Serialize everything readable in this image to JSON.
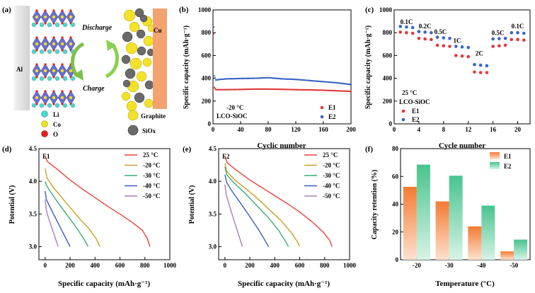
{
  "colors": {
    "e1_red": "#e0393b",
    "e2_blue": "#3a64c4",
    "orange": "#f28e4c",
    "green": "#5cc99a",
    "c25": "#e8443a",
    "cm20": "#c9a227",
    "cm30": "#3cab78",
    "cm40": "#3b5fbf",
    "cm50": "#a67fb5"
  },
  "schematic": {
    "panel_label": "(a)",
    "al_label": "Al",
    "cu_label": "Cu",
    "discharge_label": "Discharge",
    "charge_label": "Charge",
    "legend": [
      {
        "symbol": "Li",
        "color": "#4fd6d0"
      },
      {
        "symbol": "Co",
        "color": "#f0e020"
      },
      {
        "symbol": "O",
        "color": "#e02020"
      }
    ],
    "legend_right": [
      {
        "symbol": "Graphite",
        "color": "#f2e22a"
      },
      {
        "symbol": "SiOx",
        "color": "#6a6a6a"
      }
    ]
  },
  "chart_data": [
    {
      "panel": "(b)",
      "type": "scatter",
      "xlabel": "Cyclic number",
      "ylabel": "Specific capacity (mAh·g⁻¹)",
      "xlim": [
        0,
        200
      ],
      "ylim": [
        0,
        1000
      ],
      "xticks": [
        0,
        40,
        80,
        120,
        160,
        200
      ],
      "yticks": [
        0,
        200,
        400,
        600,
        800,
        1000
      ],
      "annotations": [
        "-20 °C",
        "LCO-SiOC"
      ],
      "series": [
        {
          "name": "E1",
          "x": [
            1,
            2,
            4,
            10,
            20,
            40,
            60,
            80,
            100,
            120,
            140,
            160,
            180,
            200
          ],
          "values": [
            790,
            320,
            300,
            300,
            300,
            302,
            305,
            305,
            303,
            300,
            298,
            295,
            290,
            285
          ]
        },
        {
          "name": "E2",
          "x": [
            1,
            2,
            4,
            10,
            20,
            40,
            60,
            80,
            90,
            100,
            120,
            140,
            160,
            180,
            200
          ],
          "values": [
            850,
            420,
            385,
            390,
            395,
            398,
            400,
            405,
            400,
            395,
            390,
            380,
            370,
            360,
            345
          ]
        }
      ]
    },
    {
      "panel": "(c)",
      "type": "scatter",
      "xlabel": "Cycle number",
      "ylabel": "Specific capacity (mAh·g⁻¹)",
      "xlim": [
        0,
        22
      ],
      "ylim": [
        0,
        1000
      ],
      "xticks": [
        0,
        4,
        8,
        12,
        16,
        20
      ],
      "yticks": [
        0,
        200,
        400,
        600,
        800,
        1000
      ],
      "rate_labels": [
        {
          "label": "0.1C",
          "x": 2,
          "y": 875
        },
        {
          "label": "0.2C",
          "x": 5,
          "y": 840
        },
        {
          "label": "0.5C",
          "x": 7.5,
          "y": 790
        },
        {
          "label": "1C",
          "x": 10.2,
          "y": 710
        },
        {
          "label": "2C",
          "x": 13.8,
          "y": 600
        },
        {
          "label": "0.5C",
          "x": 16.8,
          "y": 780
        },
        {
          "label": "0.1C",
          "x": 20,
          "y": 840
        }
      ],
      "annotations": [
        "25 °C",
        "LCO-SiOC"
      ],
      "series": [
        {
          "name": "E1",
          "x": [
            1,
            2,
            3,
            4,
            5,
            6,
            7,
            8,
            9,
            10,
            11,
            12,
            13,
            14,
            15,
            16,
            17,
            18,
            19,
            20,
            21
          ],
          "values": [
            805,
            800,
            795,
            750,
            745,
            740,
            690,
            685,
            680,
            600,
            595,
            590,
            455,
            450,
            450,
            680,
            685,
            690,
            740,
            740,
            735
          ]
        },
        {
          "name": "E2",
          "x": [
            1,
            2,
            3,
            4,
            5,
            6,
            7,
            8,
            9,
            10,
            11,
            12,
            13,
            14,
            15,
            16,
            17,
            18,
            19,
            20,
            21
          ],
          "values": [
            855,
            850,
            845,
            810,
            805,
            800,
            760,
            755,
            750,
            680,
            675,
            670,
            520,
            515,
            510,
            745,
            748,
            750,
            800,
            800,
            795
          ]
        }
      ]
    },
    {
      "panel": "(d)",
      "type": "line",
      "tag": "E1",
      "xlabel": "Specific capacity (mAh·g⁻¹)",
      "ylabel": "Potential (V)",
      "xlim": [
        -50,
        1000
      ],
      "ylim": [
        2.8,
        4.5
      ],
      "xticks": [
        0,
        200,
        400,
        600,
        800,
        1000
      ],
      "yticks": [
        3.0,
        3.5,
        4.0,
        4.5
      ],
      "series": [
        {
          "name": "25 °C",
          "x": [
            0,
            20,
            100,
            200,
            300,
            400,
            500,
            600,
            700,
            780,
            820,
            840
          ],
          "values": [
            4.38,
            4.3,
            4.18,
            4.02,
            3.88,
            3.75,
            3.62,
            3.5,
            3.37,
            3.25,
            3.12,
            3.0
          ]
        },
        {
          "name": "-20 °C",
          "x": [
            0,
            15,
            60,
            120,
            200,
            280,
            350,
            410,
            440
          ],
          "values": [
            4.2,
            4.05,
            3.92,
            3.78,
            3.6,
            3.42,
            3.28,
            3.12,
            3.0
          ]
        },
        {
          "name": "-30 °C",
          "x": [
            0,
            15,
            50,
            100,
            170,
            240,
            300,
            345
          ],
          "values": [
            4.0,
            3.92,
            3.82,
            3.68,
            3.5,
            3.32,
            3.15,
            3.0
          ]
        },
        {
          "name": "-40 °C",
          "x": [
            0,
            10,
            40,
            80,
            120,
            160,
            200
          ],
          "values": [
            3.85,
            3.72,
            3.6,
            3.45,
            3.3,
            3.15,
            3.0
          ]
        },
        {
          "name": "-50 °C",
          "x": [
            0,
            10,
            30,
            60,
            90,
            105
          ],
          "values": [
            3.72,
            3.55,
            3.42,
            3.25,
            3.08,
            3.0
          ]
        }
      ]
    },
    {
      "panel": "(e)",
      "type": "line",
      "tag": "E2",
      "xlabel": "Specific capacity (mAh·g⁻¹)",
      "ylabel": "Potential (V)",
      "xlim": [
        -50,
        1000
      ],
      "ylim": [
        2.8,
        4.5
      ],
      "xticks": [
        0,
        200,
        400,
        600,
        800,
        1000
      ],
      "yticks": [
        3.0,
        3.5,
        4.0,
        4.5
      ],
      "series": [
        {
          "name": "25 °C",
          "x": [
            0,
            20,
            100,
            200,
            300,
            400,
            500,
            600,
            700,
            790,
            840,
            860
          ],
          "values": [
            4.38,
            4.28,
            4.16,
            4.02,
            3.9,
            3.78,
            3.66,
            3.53,
            3.38,
            3.22,
            3.1,
            3.0
          ]
        },
        {
          "name": "-20 °C",
          "x": [
            0,
            15,
            80,
            160,
            260,
            360,
            450,
            530,
            580,
            600
          ],
          "values": [
            4.27,
            4.15,
            4.02,
            3.9,
            3.74,
            3.56,
            3.4,
            3.22,
            3.08,
            3.0
          ]
        },
        {
          "name": "-30 °C",
          "x": [
            0,
            15,
            70,
            150,
            250,
            350,
            430,
            480,
            510
          ],
          "values": [
            4.22,
            4.1,
            3.98,
            3.84,
            3.64,
            3.44,
            3.25,
            3.1,
            3.0
          ]
        },
        {
          "name": "-40 °C",
          "x": [
            0,
            15,
            60,
            120,
            200,
            270,
            320,
            350
          ],
          "values": [
            4.1,
            3.98,
            3.84,
            3.68,
            3.46,
            3.26,
            3.1,
            3.0
          ]
        },
        {
          "name": "-50 °C",
          "x": [
            0,
            10,
            40,
            80,
            120,
            140
          ],
          "values": [
            3.95,
            3.8,
            3.6,
            3.36,
            3.12,
            3.0
          ]
        }
      ]
    },
    {
      "panel": "(f)",
      "type": "bar",
      "xlabel": "Temperature (°C)",
      "ylabel": "Capacity retention (%)",
      "ylim": [
        0,
        80
      ],
      "yticks": [
        0,
        20,
        40,
        60,
        80
      ],
      "categories": [
        "-20",
        "-30",
        "-40",
        "-50"
      ],
      "series": [
        {
          "name": "E1",
          "values": [
            52.5,
            42,
            24,
            6
          ]
        },
        {
          "name": "E2",
          "values": [
            68.5,
            60.5,
            39,
            14.5
          ]
        }
      ]
    }
  ]
}
